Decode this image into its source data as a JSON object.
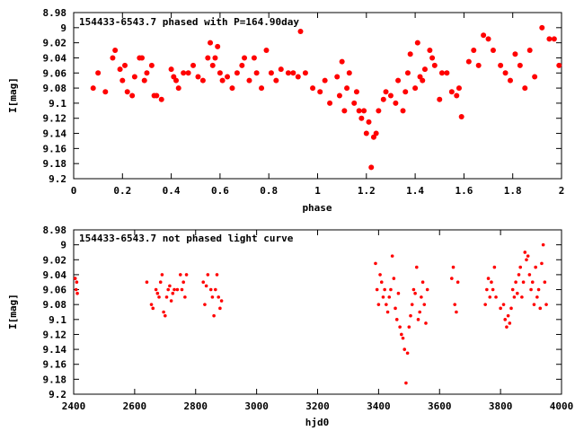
{
  "chart_data": [
    {
      "type": "scatter",
      "title": "154433-6543.7 phased with P=164.90day",
      "xlabel": "phase",
      "ylabel": "I[mag]",
      "xlim": [
        0,
        2
      ],
      "ylim": [
        9.2,
        8.98
      ],
      "y_inverted": true,
      "xticks": [
        "0",
        "0.2",
        "0.4",
        "0.6",
        "0.8",
        "1",
        "1.2",
        "1.4",
        "1.6",
        "1.8",
        "2"
      ],
      "yticks": [
        "8.98",
        "9",
        "9.02",
        "9.04",
        "9.06",
        "9.08",
        "9.1",
        "9.12",
        "9.14",
        "9.16",
        "9.18",
        "9.2"
      ],
      "grid": false,
      "marker_color": "#ff0000",
      "series": [
        {
          "x": [
            0.08,
            0.1,
            0.13,
            0.16,
            0.17,
            0.19,
            0.2,
            0.21,
            0.22,
            0.24,
            0.25,
            0.27,
            0.28,
            0.29,
            0.3,
            0.32,
            0.33,
            0.34,
            0.36,
            0.4,
            0.41,
            0.42,
            0.43,
            0.45,
            0.47,
            0.49,
            0.51,
            0.53,
            0.55,
            0.56,
            0.57,
            0.58,
            0.59,
            0.6,
            0.61,
            0.63,
            0.65,
            0.67,
            0.69,
            0.7,
            0.72,
            0.74,
            0.75,
            0.77,
            0.79,
            0.81,
            0.83,
            0.85,
            0.88,
            0.9,
            0.92,
            0.93,
            0.95,
            0.98,
            1.01,
            1.03,
            1.05,
            1.08,
            1.09,
            1.1,
            1.11,
            1.12,
            1.13,
            1.15,
            1.16,
            1.17,
            1.18,
            1.19,
            1.2,
            1.21,
            1.22,
            1.23,
            1.24,
            1.25,
            1.27,
            1.28,
            1.3,
            1.32,
            1.33,
            1.35,
            1.36,
            1.37,
            1.38,
            1.4,
            1.41,
            1.42,
            1.43,
            1.44,
            1.46,
            1.47,
            1.48,
            1.5,
            1.51,
            1.53,
            1.55,
            1.57,
            1.58,
            1.59,
            1.62,
            1.64,
            1.66,
            1.68,
            1.7,
            1.72,
            1.75,
            1.77,
            1.79,
            1.81,
            1.83,
            1.85,
            1.87,
            1.89,
            1.92,
            1.95,
            1.97,
            1.99
          ],
          "y": [
            9.08,
            9.06,
            9.085,
            9.04,
            9.03,
            9.055,
            9.07,
            9.05,
            9.085,
            9.09,
            9.065,
            9.04,
            9.04,
            9.07,
            9.06,
            9.05,
            9.09,
            9.09,
            9.095,
            9.055,
            9.065,
            9.07,
            9.08,
            9.06,
            9.06,
            9.05,
            9.065,
            9.07,
            9.04,
            9.02,
            9.05,
            9.04,
            9.025,
            9.06,
            9.07,
            9.065,
            9.08,
            9.06,
            9.05,
            9.04,
            9.07,
            9.04,
            9.06,
            9.08,
            9.03,
            9.06,
            9.07,
            9.055,
            9.06,
            9.06,
            9.065,
            9.005,
            9.06,
            9.08,
            9.085,
            9.07,
            9.1,
            9.065,
            9.09,
            9.045,
            9.11,
            9.08,
            9.06,
            9.1,
            9.085,
            9.11,
            9.12,
            9.11,
            9.14,
            9.125,
            9.185,
            9.145,
            9.14,
            9.11,
            9.095,
            9.085,
            9.09,
            9.1,
            9.07,
            9.11,
            9.085,
            9.06,
            9.035,
            9.08,
            9.02,
            9.065,
            9.07,
            9.055,
            9.03,
            9.04,
            9.05,
            9.095,
            9.06,
            9.06,
            9.085,
            9.09,
            9.08,
            9.118,
            9.045,
            9.03,
            9.05,
            9.01,
            9.015,
            9.03,
            9.05,
            9.06,
            9.07,
            9.035,
            9.05,
            9.08,
            9.03,
            9.065,
            9.0,
            9.015,
            9.015,
            9.05
          ]
        }
      ]
    },
    {
      "type": "scatter",
      "title": "154433-6543.7 not phased light curve",
      "xlabel": "hjd0",
      "ylabel": "I[mag]",
      "xlim": [
        2400,
        4000
      ],
      "ylim": [
        9.2,
        8.98
      ],
      "y_inverted": true,
      "xticks": [
        "2400",
        "2600",
        "2800",
        "3000",
        "3200",
        "3400",
        "3600",
        "3800",
        "4000"
      ],
      "yticks": [
        "8.98",
        "9",
        "9.02",
        "9.04",
        "9.06",
        "9.08",
        "9.1",
        "9.12",
        "9.14",
        "9.16",
        "9.18",
        "9.2"
      ],
      "grid": false,
      "marker_color": "#ff0000",
      "series": [
        {
          "x": [
            2405,
            2408,
            2410,
            2412,
            2640,
            2655,
            2660,
            2670,
            2675,
            2680,
            2685,
            2690,
            2695,
            2700,
            2705,
            2710,
            2715,
            2720,
            2725,
            2730,
            2740,
            2750,
            2755,
            2760,
            2765,
            2770,
            2825,
            2830,
            2835,
            2840,
            2850,
            2855,
            2860,
            2865,
            2870,
            2875,
            2880,
            2885,
            3390,
            3395,
            3400,
            3405,
            3410,
            3415,
            3420,
            3425,
            3430,
            3435,
            3440,
            3445,
            3450,
            3455,
            3460,
            3465,
            3470,
            3475,
            3480,
            3485,
            3490,
            3495,
            3500,
            3505,
            3510,
            3515,
            3520,
            3525,
            3530,
            3535,
            3540,
            3545,
            3550,
            3555,
            3560,
            3640,
            3645,
            3650,
            3655,
            3660,
            3750,
            3755,
            3760,
            3765,
            3770,
            3775,
            3780,
            3785,
            3800,
            3810,
            3815,
            3820,
            3825,
            3830,
            3835,
            3840,
            3845,
            3850,
            3855,
            3860,
            3865,
            3870,
            3875,
            3880,
            3885,
            3890,
            3895,
            3900,
            3905,
            3910,
            3915,
            3920,
            3925,
            3930,
            3935,
            3940,
            3945,
            3950
          ],
          "y": [
            9.045,
            9.06,
            9.05,
            9.065,
            9.05,
            9.08,
            9.085,
            9.06,
            9.065,
            9.07,
            9.05,
            9.04,
            9.09,
            9.095,
            9.07,
            9.06,
            9.055,
            9.075,
            9.065,
            9.06,
            9.06,
            9.04,
            9.06,
            9.05,
            9.07,
            9.04,
            9.05,
            9.08,
            9.055,
            9.04,
            9.06,
            9.07,
            9.095,
            9.06,
            9.04,
            9.07,
            9.085,
            9.075,
            9.025,
            9.06,
            9.08,
            9.04,
            9.05,
            9.07,
            9.06,
            9.08,
            9.09,
            9.07,
            9.06,
            9.015,
            9.045,
            9.085,
            9.1,
            9.065,
            9.11,
            9.12,
            9.125,
            9.14,
            9.185,
            9.145,
            9.11,
            9.095,
            9.08,
            9.06,
            9.065,
            9.03,
            9.1,
            9.09,
            9.07,
            9.05,
            9.08,
            9.105,
            9.06,
            9.045,
            9.03,
            9.08,
            9.09,
            9.05,
            9.08,
            9.06,
            9.045,
            9.07,
            9.05,
            9.06,
            9.03,
            9.07,
            9.085,
            9.08,
            9.1,
            9.11,
            9.095,
            9.105,
            9.085,
            9.06,
            9.07,
            9.05,
            9.065,
            9.04,
            9.03,
            9.07,
            9.05,
            9.01,
            9.02,
            9.015,
            9.04,
            9.06,
            9.05,
            9.08,
            9.03,
            9.07,
            9.06,
            9.085,
            9.025,
            9.0,
            9.05,
            9.08
          ]
        }
      ]
    }
  ]
}
